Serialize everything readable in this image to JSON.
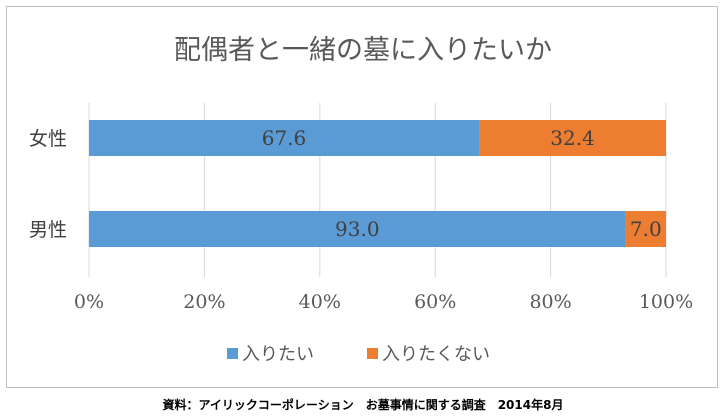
{
  "chart_data": {
    "type": "bar",
    "orientation": "horizontal",
    "stacked": true,
    "title": "配偶者と一緒の墓に入りたいか",
    "categories": [
      "女性",
      "男性"
    ],
    "series": [
      {
        "name": "入りたい",
        "values": [
          67.6,
          93.0
        ],
        "labels": [
          "67.6",
          "93.0"
        ],
        "color": "#5b9bd5"
      },
      {
        "name": "入りたくない",
        "values": [
          32.4,
          7.0
        ],
        "labels": [
          "32.4",
          "7.0"
        ],
        "color": "#ed7d31"
      }
    ],
    "xlim": [
      0,
      100
    ],
    "xticks": [
      "0%",
      "20%",
      "40%",
      "60%",
      "80%",
      "100%"
    ],
    "grid": true,
    "legend": "bottom"
  },
  "source_note": "資料：アイリックコーポレーション　お墓事情に関する調査　2014年8月"
}
